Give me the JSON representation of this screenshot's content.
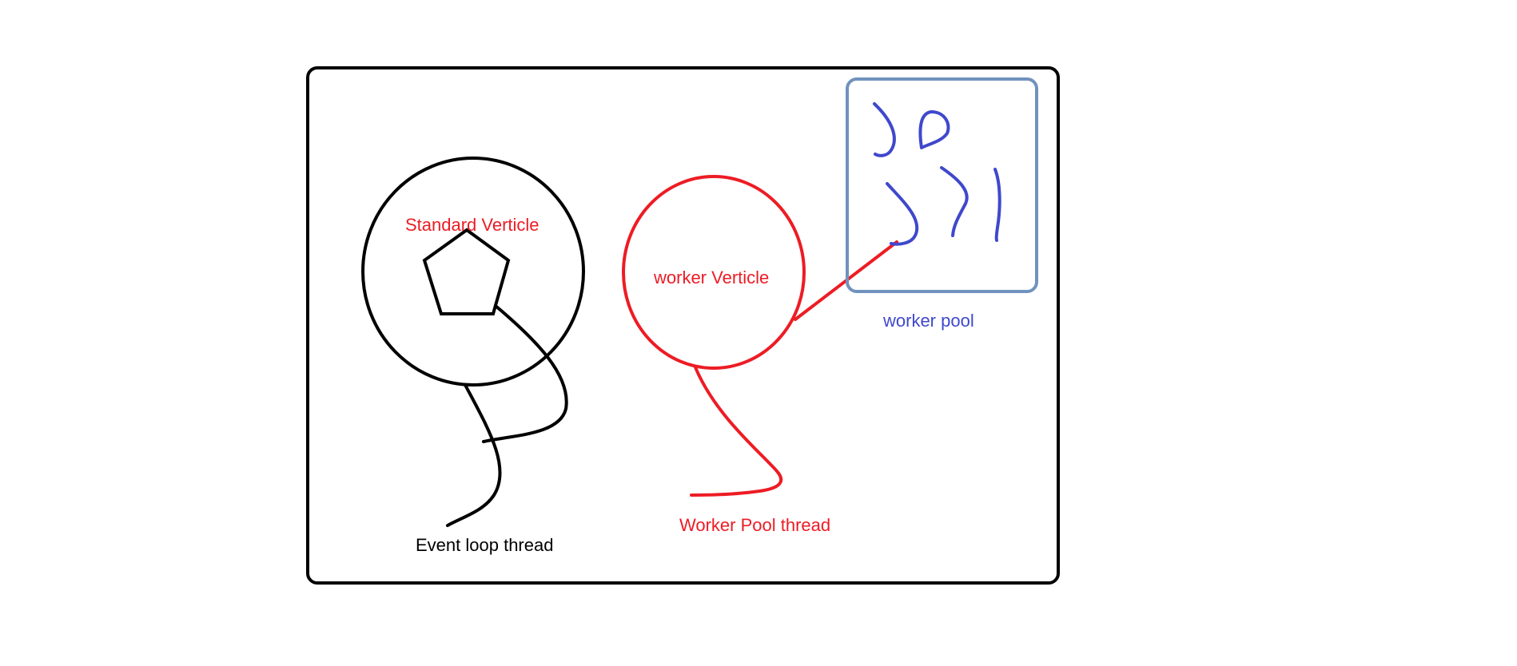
{
  "labels": {
    "standard_verticle": "Standard Verticle",
    "worker_verticle": "worker Verticle",
    "worker_pool": "worker pool",
    "event_loop_thread": "Event loop thread",
    "worker_pool_thread": "Worker Pool thread"
  },
  "colors": {
    "black": "#000000",
    "red": "#ed1c24",
    "blue": "#3f48cc",
    "steel_blue": "#7092be",
    "background": "#ffffff"
  }
}
